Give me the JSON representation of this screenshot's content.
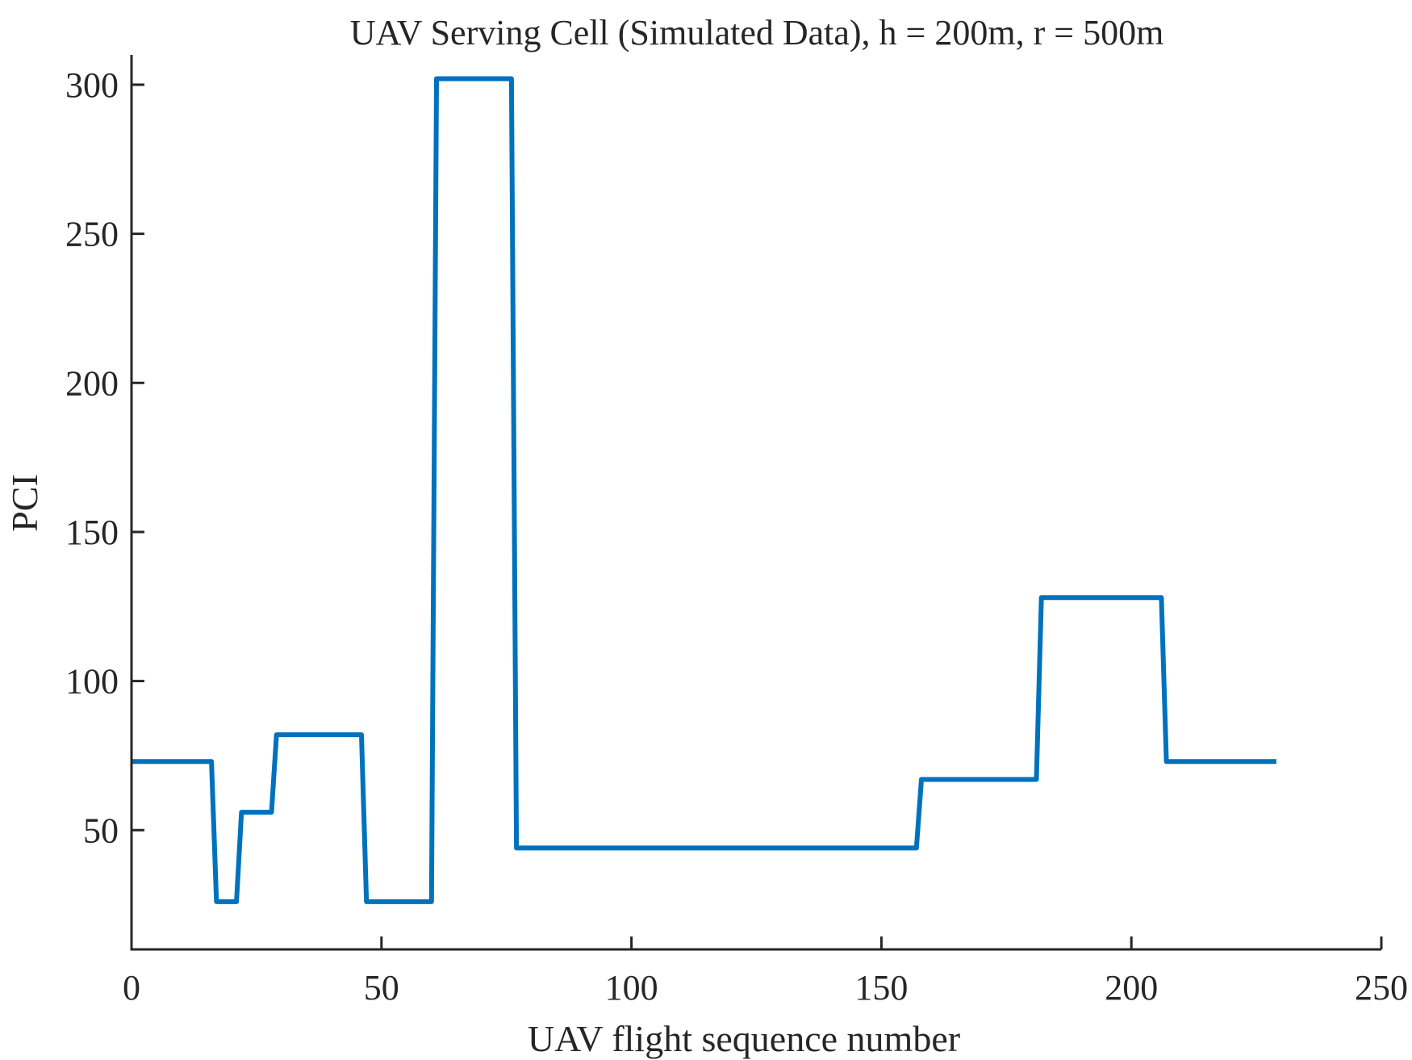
{
  "chart_data": {
    "type": "line",
    "title": "UAV Serving Cell (Simulated Data), h = 200m, r = 500m",
    "xlabel": "UAV flight sequence number",
    "ylabel": "PCI",
    "xlim": [
      0,
      250
    ],
    "ylim": [
      10,
      310
    ],
    "xticks": [
      0,
      50,
      100,
      150,
      200,
      250
    ],
    "yticks": [
      50,
      100,
      150,
      200,
      250,
      300
    ],
    "xtick_labels": [
      "0",
      "50",
      "100",
      "150",
      "200",
      "250"
    ],
    "ytick_labels": [
      "50",
      "100",
      "150",
      "200",
      "250",
      "300"
    ],
    "grid": false,
    "line_color": "#0072BD",
    "axis_color": "#262626",
    "series": [
      {
        "x": [
          0,
          16,
          17,
          21,
          22,
          28,
          29,
          46,
          47,
          60,
          61,
          76,
          77,
          157,
          158,
          181,
          182,
          206,
          207,
          229
        ],
        "values": [
          73,
          73,
          26,
          26,
          56,
          56,
          82,
          82,
          26,
          26,
          302,
          302,
          44,
          44,
          67,
          67,
          128,
          128,
          73,
          73
        ]
      }
    ]
  }
}
